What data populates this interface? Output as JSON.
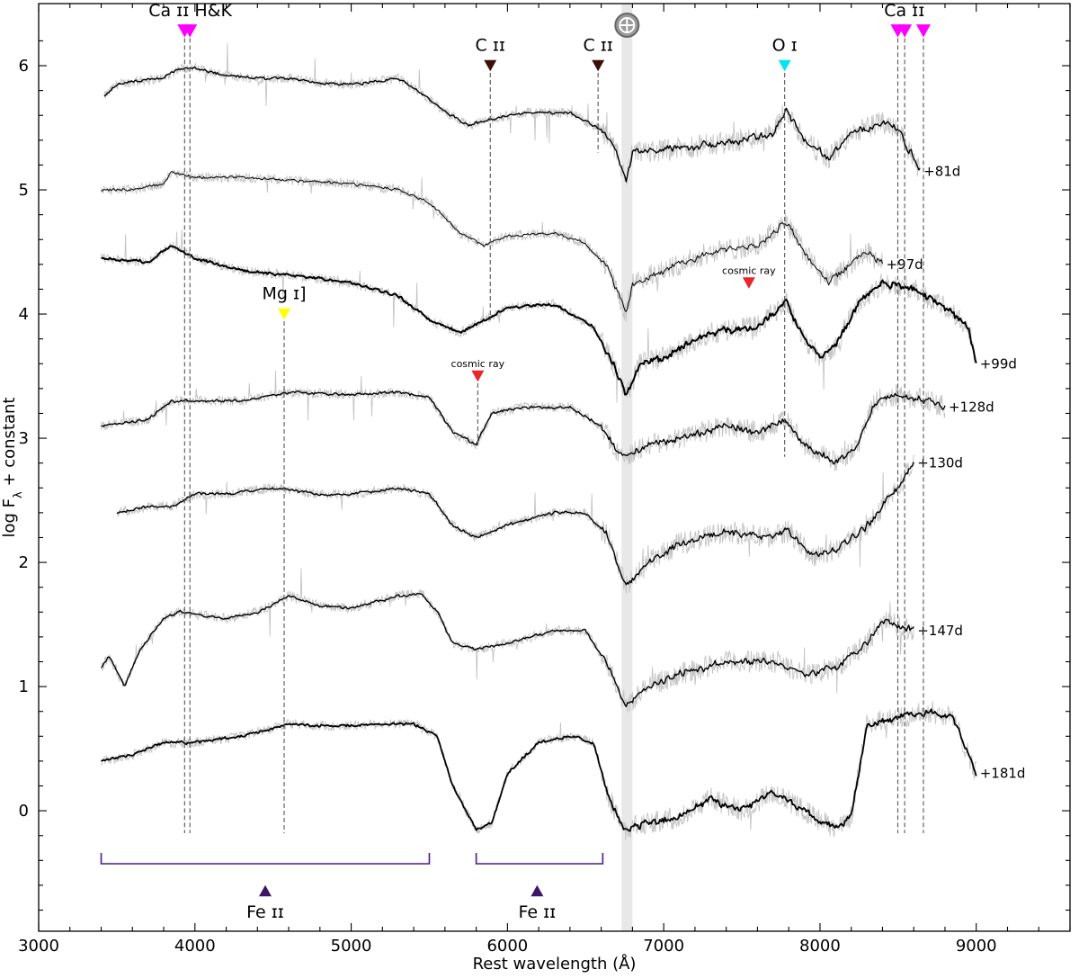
{
  "chart_data": {
    "type": "line",
    "xlabel": "Rest wavelength (Å)",
    "ylabel": "log F",
    "ylabel_sub": "λ",
    "ylabel_suffix": " + constant",
    "xlim": [
      3000,
      9600
    ],
    "ylim": [
      -0.97,
      6.5
    ],
    "xticks": [
      3000,
      4000,
      5000,
      6000,
      7000,
      8000,
      9000
    ],
    "yticks": [
      0,
      1,
      2,
      3,
      4,
      5,
      6
    ],
    "telluric_band": {
      "x0": 6730,
      "x1": 6800,
      "symbol": "⊕",
      "color": "#e8e8e8"
    },
    "series": [
      {
        "label": "+81d",
        "offset": 5.6,
        "lw": 1.4,
        "knots": [
          [
            3420,
            0.15
          ],
          [
            3500,
            0.25
          ],
          [
            3600,
            0.27
          ],
          [
            3800,
            0.3
          ],
          [
            3900,
            0.38
          ],
          [
            4000,
            0.38
          ],
          [
            4200,
            0.32
          ],
          [
            4400,
            0.3
          ],
          [
            4600,
            0.3
          ],
          [
            4800,
            0.26
          ],
          [
            5000,
            0.25
          ],
          [
            5200,
            0.28
          ],
          [
            5300,
            0.3
          ],
          [
            5450,
            0.18
          ],
          [
            5600,
            0.03
          ],
          [
            5750,
            -0.08
          ],
          [
            5900,
            -0.03
          ],
          [
            6100,
            0.02
          ],
          [
            6400,
            0.02
          ],
          [
            6600,
            -0.12
          ],
          [
            6700,
            -0.3
          ],
          [
            6760,
            -0.55
          ],
          [
            6800,
            -0.3
          ],
          [
            7000,
            -0.28
          ],
          [
            7400,
            -0.22
          ],
          [
            7700,
            -0.15
          ],
          [
            7780,
            0.05
          ],
          [
            7900,
            -0.2
          ],
          [
            8050,
            -0.35
          ],
          [
            8200,
            -0.15
          ],
          [
            8400,
            -0.05
          ],
          [
            8500,
            -0.1
          ],
          [
            8600,
            -0.35
          ],
          [
            8640,
            -0.45
          ]
        ]
      },
      {
        "label": "+97d",
        "offset": 4.85,
        "lw": 1.0,
        "knots": [
          [
            3400,
            0.15
          ],
          [
            3600,
            0.15
          ],
          [
            3800,
            0.2
          ],
          [
            3850,
            0.3
          ],
          [
            4000,
            0.25
          ],
          [
            4300,
            0.25
          ],
          [
            4700,
            0.22
          ],
          [
            5000,
            0.2
          ],
          [
            5300,
            0.15
          ],
          [
            5500,
            0.05
          ],
          [
            5700,
            -0.2
          ],
          [
            5850,
            -0.3
          ],
          [
            6000,
            -0.22
          ],
          [
            6300,
            -0.2
          ],
          [
            6500,
            -0.28
          ],
          [
            6650,
            -0.5
          ],
          [
            6760,
            -0.85
          ],
          [
            6800,
            -0.6
          ],
          [
            7000,
            -0.5
          ],
          [
            7300,
            -0.35
          ],
          [
            7600,
            -0.3
          ],
          [
            7780,
            -0.1
          ],
          [
            7900,
            -0.35
          ],
          [
            8050,
            -0.6
          ],
          [
            8200,
            -0.45
          ],
          [
            8300,
            -0.35
          ],
          [
            8400,
            -0.45
          ]
        ]
      },
      {
        "label": "+99d",
        "offset": 4.3,
        "lw": 2.0,
        "knots": [
          [
            3400,
            0.15
          ],
          [
            3700,
            0.12
          ],
          [
            3850,
            0.25
          ],
          [
            4000,
            0.15
          ],
          [
            4300,
            0.05
          ],
          [
            4700,
            0.0
          ],
          [
            5000,
            -0.05
          ],
          [
            5300,
            -0.15
          ],
          [
            5500,
            -0.35
          ],
          [
            5700,
            -0.45
          ],
          [
            5850,
            -0.35
          ],
          [
            6000,
            -0.25
          ],
          [
            6300,
            -0.22
          ],
          [
            6550,
            -0.4
          ],
          [
            6700,
            -0.75
          ],
          [
            6760,
            -0.95
          ],
          [
            6850,
            -0.7
          ],
          [
            7000,
            -0.65
          ],
          [
            7300,
            -0.45
          ],
          [
            7600,
            -0.4
          ],
          [
            7780,
            -0.2
          ],
          [
            7900,
            -0.5
          ],
          [
            8000,
            -0.65
          ],
          [
            8100,
            -0.55
          ],
          [
            8250,
            -0.2
          ],
          [
            8400,
            -0.05
          ],
          [
            8600,
            -0.1
          ],
          [
            8800,
            -0.25
          ],
          [
            8950,
            -0.4
          ],
          [
            9000,
            -0.7
          ]
        ]
      },
      {
        "label": "+128d",
        "offset": 3.15,
        "lw": 1.4,
        "knots": [
          [
            3400,
            -0.05
          ],
          [
            3700,
            0.0
          ],
          [
            3850,
            0.15
          ],
          [
            4000,
            0.15
          ],
          [
            4300,
            0.15
          ],
          [
            4600,
            0.22
          ],
          [
            5000,
            0.2
          ],
          [
            5300,
            0.22
          ],
          [
            5500,
            0.18
          ],
          [
            5650,
            -0.1
          ],
          [
            5800,
            -0.2
          ],
          [
            5900,
            0.05
          ],
          [
            6100,
            0.1
          ],
          [
            6400,
            0.1
          ],
          [
            6600,
            -0.05
          ],
          [
            6700,
            -0.25
          ],
          [
            6760,
            -0.3
          ],
          [
            6900,
            -0.2
          ],
          [
            7100,
            -0.15
          ],
          [
            7400,
            -0.05
          ],
          [
            7600,
            -0.1
          ],
          [
            7780,
            0.0
          ],
          [
            7900,
            -0.2
          ],
          [
            8100,
            -0.35
          ],
          [
            8250,
            -0.2
          ],
          [
            8350,
            0.15
          ],
          [
            8500,
            0.2
          ],
          [
            8700,
            0.15
          ],
          [
            8800,
            0.1
          ]
        ]
      },
      {
        "label": "+130d",
        "offset": 2.35,
        "lw": 1.4,
        "knots": [
          [
            3500,
            0.05
          ],
          [
            3700,
            0.1
          ],
          [
            3850,
            0.1
          ],
          [
            4000,
            0.2
          ],
          [
            4200,
            0.2
          ],
          [
            4500,
            0.25
          ],
          [
            4800,
            0.2
          ],
          [
            5000,
            0.2
          ],
          [
            5300,
            0.25
          ],
          [
            5500,
            0.2
          ],
          [
            5650,
            -0.05
          ],
          [
            5800,
            -0.15
          ],
          [
            6000,
            -0.05
          ],
          [
            6300,
            0.05
          ],
          [
            6500,
            0.05
          ],
          [
            6650,
            -0.15
          ],
          [
            6760,
            -0.55
          ],
          [
            6900,
            -0.35
          ],
          [
            7100,
            -0.2
          ],
          [
            7400,
            -0.1
          ],
          [
            7650,
            -0.15
          ],
          [
            7800,
            -0.1
          ],
          [
            7950,
            -0.3
          ],
          [
            8100,
            -0.25
          ],
          [
            8300,
            -0.05
          ],
          [
            8500,
            0.25
          ],
          [
            8600,
            0.45
          ]
        ]
      },
      {
        "label": "+147d",
        "offset": 1.45,
        "lw": 1.4,
        "knots": [
          [
            3400,
            -0.3
          ],
          [
            3450,
            -0.2
          ],
          [
            3550,
            -0.45
          ],
          [
            3650,
            -0.15
          ],
          [
            3800,
            0.1
          ],
          [
            3900,
            0.15
          ],
          [
            4200,
            0.1
          ],
          [
            4400,
            0.15
          ],
          [
            4600,
            0.28
          ],
          [
            4800,
            0.2
          ],
          [
            5000,
            0.18
          ],
          [
            5300,
            0.28
          ],
          [
            5450,
            0.3
          ],
          [
            5550,
            0.15
          ],
          [
            5650,
            -0.1
          ],
          [
            5800,
            -0.15
          ],
          [
            6000,
            -0.1
          ],
          [
            6300,
            0.0
          ],
          [
            6500,
            0.0
          ],
          [
            6650,
            -0.3
          ],
          [
            6760,
            -0.6
          ],
          [
            6900,
            -0.45
          ],
          [
            7100,
            -0.35
          ],
          [
            7400,
            -0.25
          ],
          [
            7700,
            -0.25
          ],
          [
            7900,
            -0.35
          ],
          [
            8100,
            -0.3
          ],
          [
            8300,
            -0.1
          ],
          [
            8400,
            0.08
          ],
          [
            8600,
            0.0
          ]
        ]
      },
      {
        "label": "+181d",
        "offset": 0.4,
        "lw": 1.8,
        "knots": [
          [
            3400,
            0.0
          ],
          [
            3600,
            0.05
          ],
          [
            3800,
            0.15
          ],
          [
            4000,
            0.15
          ],
          [
            4300,
            0.2
          ],
          [
            4600,
            0.3
          ],
          [
            4900,
            0.28
          ],
          [
            5200,
            0.3
          ],
          [
            5400,
            0.3
          ],
          [
            5550,
            0.2
          ],
          [
            5650,
            -0.2
          ],
          [
            5800,
            -0.55
          ],
          [
            5900,
            -0.5
          ],
          [
            6000,
            -0.1
          ],
          [
            6200,
            0.15
          ],
          [
            6400,
            0.2
          ],
          [
            6550,
            0.15
          ],
          [
            6650,
            -0.3
          ],
          [
            6750,
            -0.55
          ],
          [
            6900,
            -0.5
          ],
          [
            7100,
            -0.45
          ],
          [
            7300,
            -0.3
          ],
          [
            7500,
            -0.4
          ],
          [
            7700,
            -0.25
          ],
          [
            7900,
            -0.4
          ],
          [
            8100,
            -0.55
          ],
          [
            8200,
            -0.45
          ],
          [
            8300,
            0.3
          ],
          [
            8500,
            0.35
          ],
          [
            8700,
            0.4
          ],
          [
            8850,
            0.35
          ],
          [
            9000,
            -0.1
          ]
        ]
      }
    ],
    "line_markers": [
      {
        "label": "Ca ɪɪ H&K",
        "wavelengths": [
          3934,
          3968
        ],
        "color": "#ff00ff",
        "marker_y": 6.28,
        "line_bottom": -0.18,
        "text_x": 3970,
        "text_y": 6.4,
        "size": "large"
      },
      {
        "label": "C ɪɪ",
        "wavelengths": [
          5890
        ],
        "color": "#3d0f0b",
        "marker_y": 6.0,
        "line_bottom": 3.95,
        "text_x": 5890,
        "text_y": 6.12,
        "size": "normal"
      },
      {
        "label": "C ɪɪ",
        "wavelengths": [
          6580
        ],
        "color": "#3d0f0b",
        "marker_y": 6.0,
        "line_bottom": 5.3,
        "text_x": 6580,
        "text_y": 6.12,
        "size": "normal"
      },
      {
        "label": "O ɪ",
        "wavelengths": [
          7774
        ],
        "color": "#00e5ee",
        "marker_y": 6.0,
        "line_bottom": 2.85,
        "text_x": 7774,
        "text_y": 6.12,
        "size": "normal"
      },
      {
        "label": "Mg ɪ]",
        "wavelengths": [
          4571
        ],
        "color": "#ffff00",
        "marker_y": 4.0,
        "line_bottom": -0.18,
        "text_x": 4571,
        "text_y": 4.12,
        "size": "normal"
      },
      {
        "label": "Ca ɪɪ",
        "wavelengths": [
          8498,
          8542,
          8662
        ],
        "color": "#ff00ff",
        "marker_y": 6.28,
        "line_bottom": -0.18,
        "text_x": 8540,
        "text_y": 6.4,
        "size": "large"
      }
    ],
    "cosmic_rays": [
      {
        "label": "cosmic ray",
        "x": 5810,
        "marker_y": 3.5,
        "line_bottom": 2.92,
        "dashed": true
      },
      {
        "label": "cosmic ray",
        "x": 7545,
        "marker_y": 4.25,
        "line_bottom": 4.25,
        "dashed": false
      }
    ],
    "fe_brackets": [
      {
        "label": "Fe ɪɪ",
        "x0": 3400,
        "x1": 5500,
        "marker_x": 4450
      },
      {
        "label": "Fe ɪɪ",
        "x0": 5800,
        "x1": 6610,
        "marker_x": 6190
      }
    ],
    "bracket_color": "#4b1b8c",
    "fe_marker_color": "#3d1466"
  }
}
